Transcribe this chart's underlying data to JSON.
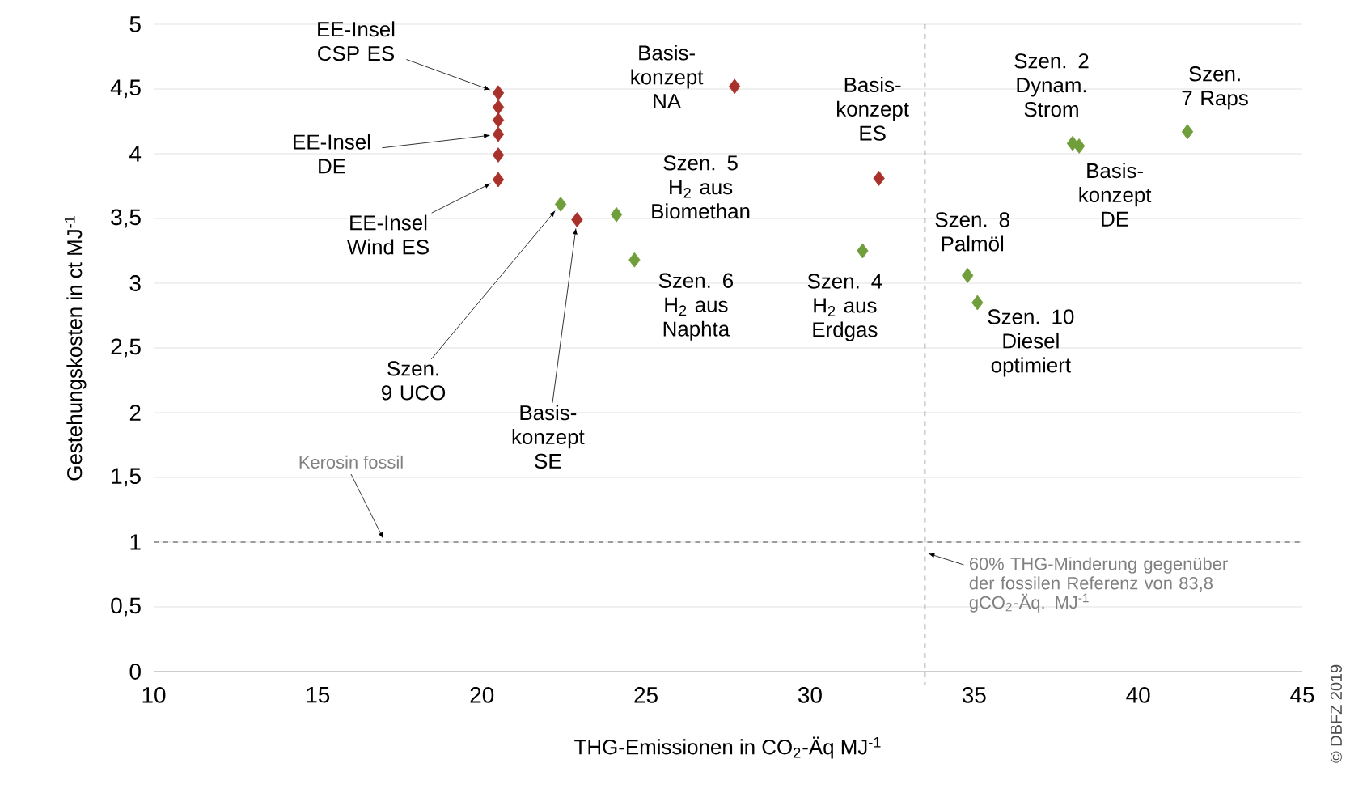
{
  "chart_data": {
    "type": "scatter",
    "xlabel": "THG-Emissionen in  CO$_{2}$-Äq MJ$^{-1}$",
    "ylabel": "Gestehungskosten in ct  MJ$^{-1}$",
    "xlim": [
      10,
      45
    ],
    "ylim": [
      0,
      5
    ],
    "xticks": [
      10,
      15,
      20,
      25,
      30,
      35,
      40,
      45
    ],
    "yticks": [
      0,
      {
        "value": 0.5,
        "label": "0,5"
      },
      1,
      {
        "value": 1.5,
        "label": "1,5"
      },
      2,
      {
        "value": 2.5,
        "label": "2,5"
      },
      3,
      {
        "value": 3.5,
        "label": "3,5"
      },
      4,
      {
        "value": 4.5,
        "label": "4,5"
      },
      5
    ],
    "grid": "y",
    "marker": "diamond",
    "series": [
      {
        "color": "#a8322b",
        "x": [
          20.5,
          20.5,
          20.5,
          20.5,
          20.5,
          20.5,
          27.7,
          22.9,
          32.1
        ],
        "values": [
          4.47,
          4.36,
          4.26,
          4.15,
          3.99,
          3.8,
          4.52,
          3.49,
          3.81
        ]
      },
      {
        "color": "#6f9e3a",
        "x": [
          22.4,
          24.1,
          24.65,
          31.6,
          34.8,
          35.1,
          38.0,
          38.2,
          41.5
        ],
        "values": [
          3.61,
          3.53,
          3.18,
          3.25,
          3.06,
          2.85,
          4.08,
          4.06,
          4.17
        ]
      }
    ],
    "ref_lines": [
      {
        "axis": "y",
        "value": 1,
        "label": "Kerosin fossil",
        "color": "#808080",
        "line_style": "dashed"
      },
      {
        "axis": "x",
        "value": 33.5,
        "label": "60% THG-Minderung gegenüber der fossilen Referenz von 83,8 gCO$_{2}$-Äq. MJ$^{-1}$",
        "color": "#808080",
        "line_style": "dashed"
      }
    ],
    "annotations": [
      {
        "text": "EE-Insel CSP ES",
        "x": 20.5,
        "y": 4.47
      },
      {
        "text": "EE-Insel DE",
        "x": 20.5,
        "y": 4.15
      },
      {
        "text": "EE-Insel Wind ES",
        "x": 20.5,
        "y": 3.8
      },
      {
        "text": "Basis-konzept NA",
        "x": 27.7,
        "y": 4.52
      },
      {
        "text": "Szen. 5 H$_{2}$ aus Biomethan",
        "x": 24.1,
        "y": 3.53
      },
      {
        "text": "Szen. 6 H$_{2}$ aus Naphta",
        "x": 24.65,
        "y": 3.18
      },
      {
        "text": "Szen. 9 UCO",
        "x": 22.4,
        "y": 3.61
      },
      {
        "text": "Basis-konzept SE",
        "x": 22.9,
        "y": 3.49
      },
      {
        "text": "Basis-konzept ES",
        "x": 32.1,
        "y": 3.81
      },
      {
        "text": "Szen. 4 H$_{2}$ aus Erdgas",
        "x": 31.6,
        "y": 3.25
      },
      {
        "text": "Szen. 8 Palmöl",
        "x": 34.8,
        "y": 3.06
      },
      {
        "text": "Szen. 10 Diesel optimiert",
        "x": 35.1,
        "y": 2.85
      },
      {
        "text": "Szen. 2 Dynam. Strom",
        "x": 38.0,
        "y": 4.08
      },
      {
        "text": "Basis-konzept DE",
        "x": 38.2,
        "y": 4.06
      },
      {
        "text": "Szen. 7 Raps",
        "x": 41.5,
        "y": 4.17
      },
      "© DBFZ 2019"
    ]
  }
}
